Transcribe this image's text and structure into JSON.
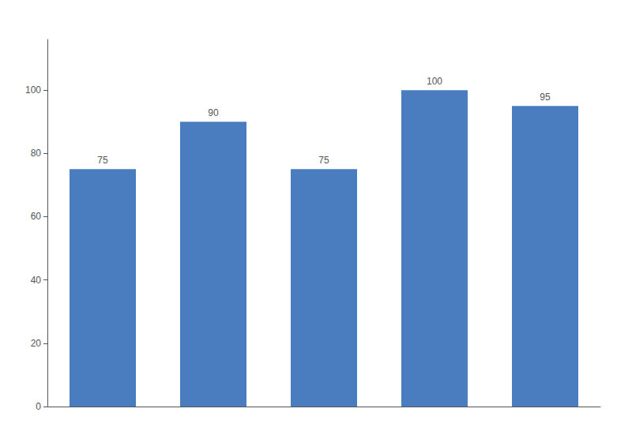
{
  "chart_data": {
    "type": "bar",
    "categories": [
      null,
      null,
      null,
      null,
      null
    ],
    "values": [
      75,
      90,
      75,
      100,
      95
    ],
    "color": "#4a7dbf",
    "ylim": [
      0,
      116
    ],
    "yticks": [
      0,
      20,
      40,
      60,
      80,
      100
    ],
    "grid": false,
    "data_labels": true,
    "tick_labels": "y"
  }
}
